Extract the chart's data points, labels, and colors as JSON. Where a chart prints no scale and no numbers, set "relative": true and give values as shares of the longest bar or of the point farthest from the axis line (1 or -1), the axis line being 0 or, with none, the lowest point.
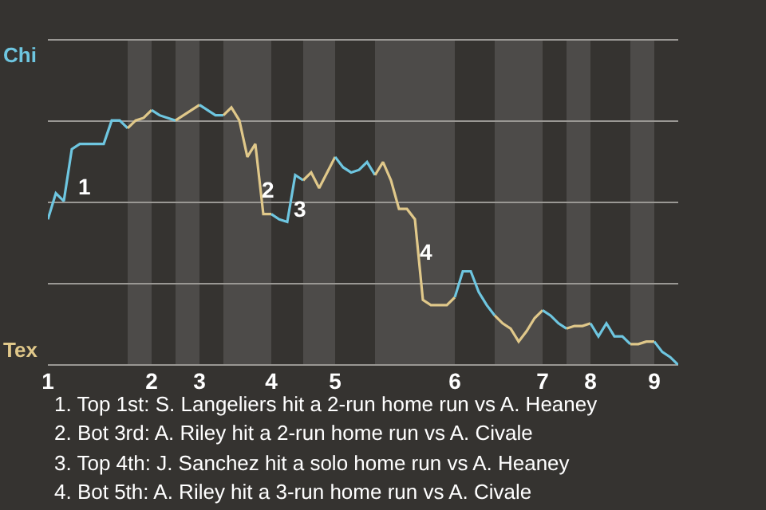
{
  "chart_data": {
    "type": "line",
    "relative": true,
    "categories": [
      "1",
      null,
      null,
      null,
      null,
      null,
      null,
      null,
      null,
      null,
      null,
      null,
      null,
      "2",
      null,
      null,
      null,
      null,
      null,
      "3",
      null,
      null,
      null,
      null,
      null,
      null,
      null,
      null,
      "4",
      null,
      null,
      null,
      null,
      null,
      null,
      null,
      "5",
      null,
      null,
      null,
      null,
      null,
      null,
      null,
      null,
      null,
      null,
      null,
      null,
      null,
      null,
      "6",
      null,
      null,
      null,
      null,
      null,
      null,
      null,
      null,
      null,
      null,
      "7",
      null,
      null,
      null,
      null,
      null,
      "8",
      null,
      null,
      null,
      null,
      null,
      null,
      null,
      "9",
      null,
      null,
      null
    ],
    "series": [
      {
        "color": "#6ec6e0",
        "values": [
          0.56,
          0.66,
          0.63,
          0.83,
          0.85,
          0.85,
          0.85,
          0.85,
          0.94,
          0.94,
          0.91,
          null,
          null,
          null,
          null,
          null,
          null,
          null,
          null,
          null,
          null,
          null,
          null,
          null,
          null,
          null,
          null,
          null,
          null,
          null,
          null,
          null,
          null,
          null,
          null,
          null,
          null,
          null,
          null,
          null,
          null,
          null,
          null,
          null,
          null,
          null,
          null,
          null,
          null,
          null,
          null,
          null,
          null,
          null,
          null,
          null,
          null,
          null,
          null,
          null,
          null,
          null,
          null,
          null,
          null,
          null,
          null,
          null,
          null,
          null,
          null,
          null,
          null,
          null,
          null,
          null,
          null,
          null,
          null,
          null
        ]
      },
      {
        "color": "#e0c88a",
        "values": [
          null,
          null,
          null,
          null,
          null,
          null,
          null,
          null,
          null,
          null,
          0.91,
          0.94,
          0.95,
          0.98,
          null,
          null,
          null,
          null,
          null,
          null,
          null,
          null,
          null,
          null,
          null,
          null,
          null,
          null,
          null,
          null,
          null,
          null,
          null,
          null,
          null,
          null,
          null,
          null,
          null,
          null,
          null,
          null,
          null,
          null,
          null,
          null,
          null,
          null,
          null,
          null,
          null,
          null,
          null,
          null,
          null,
          null,
          null,
          null,
          null,
          null,
          null,
          null,
          null,
          null,
          null,
          null,
          null,
          null,
          null,
          null,
          null,
          null,
          null,
          null,
          null,
          null,
          null,
          null,
          null,
          null
        ]
      },
      {
        "color": "#6ec6e0",
        "values": [
          null,
          null,
          null,
          null,
          null,
          null,
          null,
          null,
          null,
          null,
          null,
          null,
          null,
          0.98,
          0.96,
          0.95,
          0.94,
          null,
          null,
          null,
          null,
          null,
          null,
          null,
          null,
          null,
          null,
          null,
          null,
          null,
          null,
          null,
          null,
          null,
          null,
          null,
          null,
          null,
          null,
          null,
          null,
          null,
          null,
          null,
          null,
          null,
          null,
          null,
          null,
          null,
          null,
          null,
          null,
          null,
          null,
          null,
          null,
          null,
          null,
          null,
          null,
          null,
          null,
          null,
          null,
          null,
          null,
          null,
          null,
          null,
          null,
          null,
          null,
          null,
          null,
          null,
          null,
          null,
          null,
          null
        ]
      },
      {
        "color": "#e0c88a",
        "values": [
          null,
          null,
          null,
          null,
          null,
          null,
          null,
          null,
          null,
          null,
          null,
          null,
          null,
          null,
          null,
          null,
          0.94,
          0.96,
          0.98,
          1,
          null,
          null,
          null,
          null,
          null,
          null,
          null,
          null,
          null,
          null,
          null,
          null,
          null,
          null,
          null,
          null,
          null,
          null,
          null,
          null,
          null,
          null,
          null,
          null,
          null,
          null,
          null,
          null,
          null,
          null,
          null,
          null,
          null,
          null,
          null,
          null,
          null,
          null,
          null,
          null,
          null,
          null,
          null,
          null,
          null,
          null,
          null,
          null,
          null,
          null,
          null,
          null,
          null,
          null,
          null,
          null,
          null,
          null,
          null,
          null
        ]
      },
      {
        "color": "#6ec6e0",
        "values": [
          null,
          null,
          null,
          null,
          null,
          null,
          null,
          null,
          null,
          null,
          null,
          null,
          null,
          null,
          null,
          null,
          null,
          null,
          null,
          1,
          0.98,
          0.96,
          0.96,
          null,
          null,
          null,
          null,
          null,
          null,
          null,
          null,
          null,
          null,
          null,
          null,
          null,
          null,
          null,
          null,
          null,
          null,
          null,
          null,
          null,
          null,
          null,
          null,
          null,
          null,
          null,
          null,
          null,
          null,
          null,
          null,
          null,
          null,
          null,
          null,
          null,
          null,
          null,
          null,
          null,
          null,
          null,
          null,
          null,
          null,
          null,
          null,
          null,
          null,
          null,
          null,
          null,
          null,
          null,
          null,
          null
        ]
      },
      {
        "color": "#e0c88a",
        "values": [
          null,
          null,
          null,
          null,
          null,
          null,
          null,
          null,
          null,
          null,
          null,
          null,
          null,
          null,
          null,
          null,
          null,
          null,
          null,
          null,
          null,
          null,
          0.96,
          0.99,
          0.94,
          0.8,
          0.85,
          0.58,
          0.58,
          null,
          null,
          null,
          null,
          null,
          null,
          null,
          null,
          null,
          null,
          null,
          null,
          null,
          null,
          null,
          null,
          null,
          null,
          null,
          null,
          null,
          null,
          null,
          null,
          null,
          null,
          null,
          null,
          null,
          null,
          null,
          null,
          null,
          null,
          null,
          null,
          null,
          null,
          null,
          null,
          null,
          null,
          null,
          null,
          null,
          null,
          null,
          null,
          null,
          null,
          null
        ]
      },
      {
        "color": "#6ec6e0",
        "values": [
          null,
          null,
          null,
          null,
          null,
          null,
          null,
          null,
          null,
          null,
          null,
          null,
          null,
          null,
          null,
          null,
          null,
          null,
          null,
          null,
          null,
          null,
          null,
          null,
          null,
          null,
          null,
          null,
          0.58,
          0.56,
          0.55,
          0.73,
          0.71,
          null,
          null,
          null,
          null,
          null,
          null,
          null,
          null,
          null,
          null,
          null,
          null,
          null,
          null,
          null,
          null,
          null,
          null,
          null,
          null,
          null,
          null,
          null,
          null,
          null,
          null,
          null,
          null,
          null,
          null,
          null,
          null,
          null,
          null,
          null,
          null,
          null,
          null,
          null,
          null,
          null,
          null,
          null,
          null,
          null,
          null,
          null
        ]
      },
      {
        "color": "#e0c88a",
        "values": [
          null,
          null,
          null,
          null,
          null,
          null,
          null,
          null,
          null,
          null,
          null,
          null,
          null,
          null,
          null,
          null,
          null,
          null,
          null,
          null,
          null,
          null,
          null,
          null,
          null,
          null,
          null,
          null,
          null,
          null,
          null,
          null,
          0.71,
          0.74,
          0.68,
          0.74,
          0.8,
          null,
          null,
          null,
          null,
          null,
          null,
          null,
          null,
          null,
          null,
          null,
          null,
          null,
          null,
          null,
          null,
          null,
          null,
          null,
          null,
          null,
          null,
          null,
          null,
          null,
          null,
          null,
          null,
          null,
          null,
          null,
          null,
          null,
          null,
          null,
          null,
          null,
          null,
          null,
          null,
          null,
          null,
          null
        ]
      },
      {
        "color": "#6ec6e0",
        "values": [
          null,
          null,
          null,
          null,
          null,
          null,
          null,
          null,
          null,
          null,
          null,
          null,
          null,
          null,
          null,
          null,
          null,
          null,
          null,
          null,
          null,
          null,
          null,
          null,
          null,
          null,
          null,
          null,
          null,
          null,
          null,
          null,
          null,
          null,
          null,
          null,
          0.8,
          0.76,
          0.74,
          0.75,
          0.78,
          0.73,
          null,
          null,
          null,
          null,
          null,
          null,
          null,
          null,
          null,
          null,
          null,
          null,
          null,
          null,
          null,
          null,
          null,
          null,
          null,
          null,
          null,
          null,
          null,
          null,
          null,
          null,
          null,
          null,
          null,
          null,
          null,
          null,
          null,
          null,
          null,
          null,
          null,
          null
        ]
      },
      {
        "color": "#e0c88a",
        "values": [
          null,
          null,
          null,
          null,
          null,
          null,
          null,
          null,
          null,
          null,
          null,
          null,
          null,
          null,
          null,
          null,
          null,
          null,
          null,
          null,
          null,
          null,
          null,
          null,
          null,
          null,
          null,
          null,
          null,
          null,
          null,
          null,
          null,
          null,
          null,
          null,
          null,
          null,
          null,
          null,
          null,
          0.73,
          0.78,
          0.71,
          0.6,
          0.6,
          0.56,
          0.25,
          0.23,
          0.23,
          0.23,
          0.26,
          null,
          null,
          null,
          null,
          null,
          null,
          null,
          null,
          null,
          null,
          null,
          null,
          null,
          null,
          null,
          null,
          null,
          null,
          null,
          null,
          null,
          null,
          null,
          null,
          null,
          null,
          null,
          null
        ]
      },
      {
        "color": "#6ec6e0",
        "values": [
          null,
          null,
          null,
          null,
          null,
          null,
          null,
          null,
          null,
          null,
          null,
          null,
          null,
          null,
          null,
          null,
          null,
          null,
          null,
          null,
          null,
          null,
          null,
          null,
          null,
          null,
          null,
          null,
          null,
          null,
          null,
          null,
          null,
          null,
          null,
          null,
          null,
          null,
          null,
          null,
          null,
          null,
          null,
          null,
          null,
          null,
          null,
          null,
          null,
          null,
          null,
          0.26,
          0.36,
          0.36,
          0.28,
          0.23,
          0.19,
          null,
          null,
          null,
          null,
          null,
          null,
          null,
          null,
          null,
          null,
          null,
          null,
          null,
          null,
          null,
          null,
          null,
          null,
          null,
          null,
          null,
          null,
          null
        ]
      },
      {
        "color": "#e0c88a",
        "values": [
          null,
          null,
          null,
          null,
          null,
          null,
          null,
          null,
          null,
          null,
          null,
          null,
          null,
          null,
          null,
          null,
          null,
          null,
          null,
          null,
          null,
          null,
          null,
          null,
          null,
          null,
          null,
          null,
          null,
          null,
          null,
          null,
          null,
          null,
          null,
          null,
          null,
          null,
          null,
          null,
          null,
          null,
          null,
          null,
          null,
          null,
          null,
          null,
          null,
          null,
          null,
          null,
          null,
          null,
          null,
          null,
          0.19,
          0.16,
          0.14,
          0.09,
          0.13,
          0.18,
          0.21,
          null,
          null,
          null,
          null,
          null,
          null,
          null,
          null,
          null,
          null,
          null,
          null,
          null,
          null,
          null,
          null,
          null
        ]
      },
      {
        "color": "#6ec6e0",
        "values": [
          null,
          null,
          null,
          null,
          null,
          null,
          null,
          null,
          null,
          null,
          null,
          null,
          null,
          null,
          null,
          null,
          null,
          null,
          null,
          null,
          null,
          null,
          null,
          null,
          null,
          null,
          null,
          null,
          null,
          null,
          null,
          null,
          null,
          null,
          null,
          null,
          null,
          null,
          null,
          null,
          null,
          null,
          null,
          null,
          null,
          null,
          null,
          null,
          null,
          null,
          null,
          null,
          null,
          null,
          null,
          null,
          null,
          null,
          null,
          null,
          null,
          null,
          0.21,
          0.19,
          0.16,
          0.14,
          null,
          null,
          null,
          null,
          null,
          null,
          null,
          null,
          null,
          null,
          null,
          null,
          null,
          null
        ]
      },
      {
        "color": "#e0c88a",
        "values": [
          null,
          null,
          null,
          null,
          null,
          null,
          null,
          null,
          null,
          null,
          null,
          null,
          null,
          null,
          null,
          null,
          null,
          null,
          null,
          null,
          null,
          null,
          null,
          null,
          null,
          null,
          null,
          null,
          null,
          null,
          null,
          null,
          null,
          null,
          null,
          null,
          null,
          null,
          null,
          null,
          null,
          null,
          null,
          null,
          null,
          null,
          null,
          null,
          null,
          null,
          null,
          null,
          null,
          null,
          null,
          null,
          null,
          null,
          null,
          null,
          null,
          null,
          null,
          null,
          null,
          0.14,
          0.15,
          0.15,
          0.16,
          null,
          null,
          null,
          null,
          null,
          null,
          null,
          null,
          null,
          null,
          null
        ]
      },
      {
        "color": "#6ec6e0",
        "values": [
          null,
          null,
          null,
          null,
          null,
          null,
          null,
          null,
          null,
          null,
          null,
          null,
          null,
          null,
          null,
          null,
          null,
          null,
          null,
          null,
          null,
          null,
          null,
          null,
          null,
          null,
          null,
          null,
          null,
          null,
          null,
          null,
          null,
          null,
          null,
          null,
          null,
          null,
          null,
          null,
          null,
          null,
          null,
          null,
          null,
          null,
          null,
          null,
          null,
          null,
          null,
          null,
          null,
          null,
          null,
          null,
          null,
          null,
          null,
          null,
          null,
          null,
          null,
          null,
          null,
          null,
          null,
          null,
          0.16,
          0.11,
          0.16,
          0.11,
          0.11,
          0.08,
          null,
          null,
          null,
          null,
          null,
          null
        ]
      },
      {
        "color": "#e0c88a",
        "values": [
          null,
          null,
          null,
          null,
          null,
          null,
          null,
          null,
          null,
          null,
          null,
          null,
          null,
          null,
          null,
          null,
          null,
          null,
          null,
          null,
          null,
          null,
          null,
          null,
          null,
          null,
          null,
          null,
          null,
          null,
          null,
          null,
          null,
          null,
          null,
          null,
          null,
          null,
          null,
          null,
          null,
          null,
          null,
          null,
          null,
          null,
          null,
          null,
          null,
          null,
          null,
          null,
          null,
          null,
          null,
          null,
          null,
          null,
          null,
          null,
          null,
          null,
          null,
          null,
          null,
          null,
          null,
          null,
          null,
          null,
          null,
          null,
          null,
          0.08,
          0.08,
          0.09,
          0.09,
          null,
          null,
          null
        ]
      },
      {
        "color": "#6ec6e0",
        "values": [
          null,
          null,
          null,
          null,
          null,
          null,
          null,
          null,
          null,
          null,
          null,
          null,
          null,
          null,
          null,
          null,
          null,
          null,
          null,
          null,
          null,
          null,
          null,
          null,
          null,
          null,
          null,
          null,
          null,
          null,
          null,
          null,
          null,
          null,
          null,
          null,
          null,
          null,
          null,
          null,
          null,
          null,
          null,
          null,
          null,
          null,
          null,
          null,
          null,
          null,
          null,
          null,
          null,
          null,
          null,
          null,
          null,
          null,
          null,
          null,
          null,
          null,
          null,
          null,
          null,
          null,
          null,
          null,
          null,
          null,
          null,
          null,
          null,
          null,
          null,
          null,
          0.09,
          0.05,
          0.03,
          0
        ]
      }
    ],
    "grid": "y",
    "marker": "none",
    "line_style": "solid",
    "annotations": [
      "Chi",
      "Tex",
      "1",
      "2",
      "3",
      "4",
      "1. Top 1st: S. Langeliers hit a 2-run home run vs A. Heaney",
      "2. Bot 3rd: A. Riley hit a 2-run home run vs A. Civale",
      "3. Top 4th: J. Sanchez hit a solo home run vs A. Heaney",
      "4. Bot 5th: A. Riley hit a 3-run home run vs A. Civale"
    ]
  }
}
